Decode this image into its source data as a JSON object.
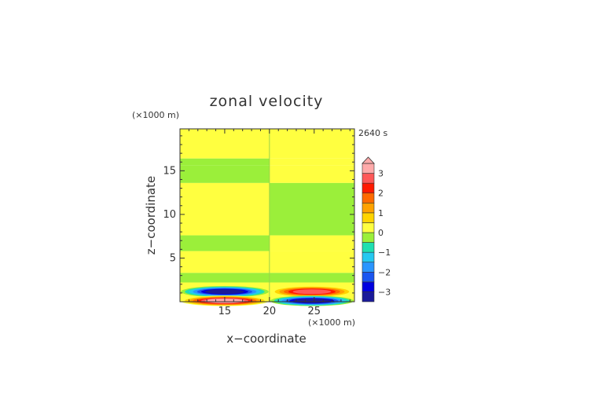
{
  "chart_data": {
    "type": "heatmap",
    "title": "zonal velocity",
    "xlabel": "x−coordinate",
    "ylabel": "z−coordinate",
    "x_unit_label": "(×1000 m)",
    "y_unit_label": "(×1000 m)",
    "time_label": "2640 s",
    "xlim": [
      10,
      29.5
    ],
    "ylim": [
      0,
      19.8
    ],
    "x_ticks": [
      15,
      20,
      25
    ],
    "y_ticks": [
      5,
      10,
      15
    ],
    "x_tick_labels": [
      "15",
      "20",
      "25"
    ],
    "y_tick_labels": [
      "5",
      "10",
      "15"
    ],
    "grid": false,
    "colorbar": {
      "levels": [
        -3.5,
        -3,
        -2.5,
        -2,
        -1.5,
        -1,
        -0.5,
        0,
        0.5,
        1,
        1.5,
        2,
        2.5,
        3,
        3.5
      ],
      "colors": [
        "#1a1a9a",
        "#0000e0",
        "#1a55f0",
        "#2a95ff",
        "#25c8f0",
        "#20dfb0",
        "#9bef3a",
        "#ffff40",
        "#ffd400",
        "#ffa200",
        "#ff6a00",
        "#ff1a00",
        "#ff5858",
        "#ffaaaa"
      ],
      "extend_top": true,
      "tick_values": [
        -3,
        -2,
        -1,
        0,
        1,
        2,
        3
      ],
      "tick_labels": [
        "−3",
        "−2",
        "−1",
        "0",
        "1",
        "2",
        "3"
      ]
    },
    "bands": [
      {
        "z": [
          18.9,
          19.8
        ],
        "left": 0.2,
        "right": 0.2
      },
      {
        "z": [
          16.4,
          18.9
        ],
        "left": 0.2,
        "right": 0.2
      },
      {
        "z": [
          15.6,
          16.4
        ],
        "left": -0.2,
        "right": 0.2
      },
      {
        "z": [
          13.6,
          15.6
        ],
        "left": -0.2,
        "right": 0.2
      },
      {
        "z": [
          7.6,
          13.6
        ],
        "left": 0.2,
        "right": -0.2
      },
      {
        "z": [
          5.8,
          7.6
        ],
        "left": -0.2,
        "right": 0.2
      },
      {
        "z": [
          3.3,
          5.8
        ],
        "left": 0.2,
        "right": 0.2
      },
      {
        "z": [
          2.2,
          3.3
        ],
        "left": -0.2,
        "right": -0.2
      },
      {
        "z": [
          0.6,
          2.2
        ],
        "left": 0.2,
        "right": 0.2
      }
    ],
    "jets": [
      {
        "x": [
          10,
          20
        ],
        "z_center": 1.15,
        "peak": -3.2
      },
      {
        "x": [
          20,
          29.5
        ],
        "z_center": 1.15,
        "peak": 2.7
      },
      {
        "x": [
          10,
          20
        ],
        "z_center": 0.1,
        "peak": 3.4
      },
      {
        "x": [
          20,
          29.5
        ],
        "z_center": 0.1,
        "peak": -3.4
      }
    ]
  }
}
